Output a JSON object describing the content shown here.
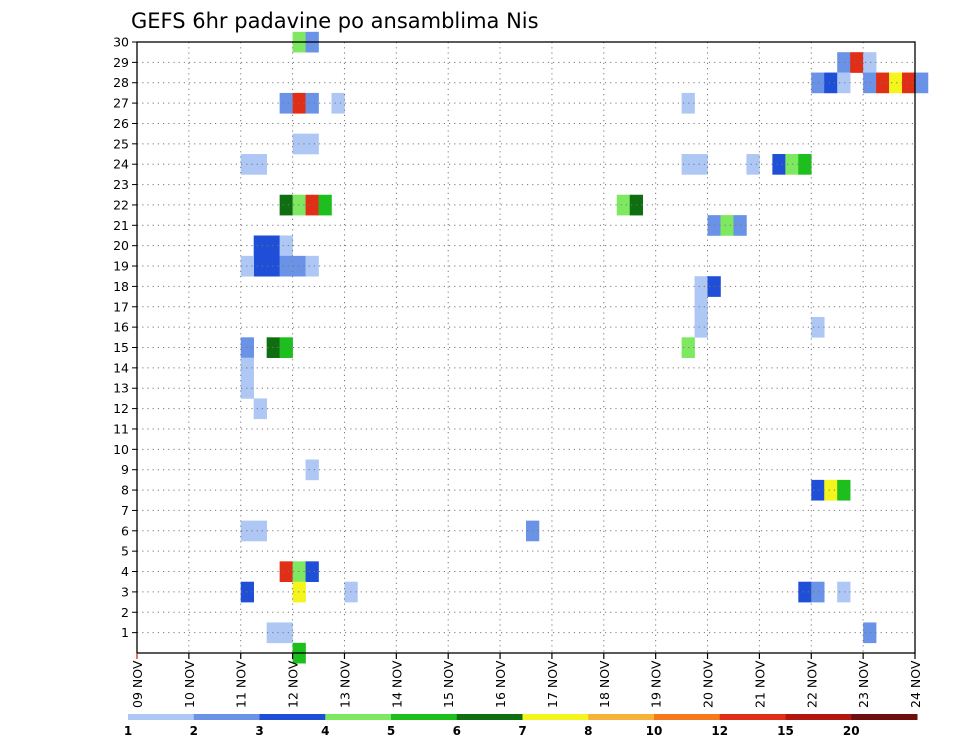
{
  "chart_data": {
    "type": "heatmap",
    "title": "GEFS 6hr padavine po ansamblima Nis",
    "xlabel": "",
    "ylabel": "",
    "x_tick_labels": [
      "09 NOV",
      "10 NOV",
      "11 NOV",
      "12 NOV",
      "13 NOV",
      "14 NOV",
      "15 NOV",
      "16 NOV",
      "17 NOV",
      "18 NOV",
      "19 NOV",
      "20 NOV",
      "21 NOV",
      "22 NOV",
      "23 NOV",
      "24 NOV"
    ],
    "x_range_days": [
      0,
      15
    ],
    "y_tick_labels": [
      "1",
      "2",
      "3",
      "4",
      "5",
      "6",
      "7",
      "8",
      "9",
      "10",
      "11",
      "12",
      "13",
      "14",
      "15",
      "16",
      "17",
      "18",
      "19",
      "20",
      "21",
      "22",
      "23",
      "24",
      "25",
      "26",
      "27",
      "28",
      "29",
      "30"
    ],
    "ylim": [
      0,
      30
    ],
    "grid": "dotted",
    "colorbar": {
      "labels": [
        "1",
        "2",
        "3",
        "4",
        "5",
        "6",
        "7",
        "8",
        "10",
        "12",
        "15",
        "20"
      ],
      "colors": [
        "#aec7f4",
        "#6a93e8",
        "#1f4fd6",
        "#7de860",
        "#1dbf1d",
        "#0f6e10",
        "#f5f51e",
        "#f7b23a",
        "#f47a1d",
        "#e02e17",
        "#b3150f",
        "#6e0f0e"
      ]
    },
    "cells_note_units": "x = day offset from 09 NOV (0.25 = 6 h step), y = ensemble member, level = colorbar bin index",
    "cells": [
      {
        "x": 3.0,
        "y": 30,
        "level": 3
      },
      {
        "x": 3.25,
        "y": 30,
        "level": 1
      },
      {
        "x": 13.5,
        "y": 29,
        "level": 1
      },
      {
        "x": 13.75,
        "y": 29,
        "level": 9
      },
      {
        "x": 14.0,
        "y": 29,
        "level": 0
      },
      {
        "x": 13.0,
        "y": 28,
        "level": 1
      },
      {
        "x": 13.25,
        "y": 28,
        "level": 2
      },
      {
        "x": 13.5,
        "y": 28,
        "level": 0
      },
      {
        "x": 14.0,
        "y": 28,
        "level": 1
      },
      {
        "x": 14.25,
        "y": 28,
        "level": 9
      },
      {
        "x": 14.5,
        "y": 28,
        "level": 6
      },
      {
        "x": 14.75,
        "y": 28,
        "level": 9
      },
      {
        "x": 15.0,
        "y": 28,
        "level": 1
      },
      {
        "x": 2.75,
        "y": 27,
        "level": 1
      },
      {
        "x": 3.0,
        "y": 27,
        "level": 9
      },
      {
        "x": 3.25,
        "y": 27,
        "level": 1
      },
      {
        "x": 3.75,
        "y": 27,
        "level": 0
      },
      {
        "x": 10.5,
        "y": 27,
        "level": 0
      },
      {
        "x": 3.0,
        "y": 25,
        "level": 0
      },
      {
        "x": 3.25,
        "y": 25,
        "level": 0
      },
      {
        "x": 2.0,
        "y": 24,
        "level": 0
      },
      {
        "x": 2.25,
        "y": 24,
        "level": 0
      },
      {
        "x": 10.5,
        "y": 24,
        "level": 0
      },
      {
        "x": 10.75,
        "y": 24,
        "level": 0
      },
      {
        "x": 11.75,
        "y": 24,
        "level": 0
      },
      {
        "x": 12.25,
        "y": 24,
        "level": 2
      },
      {
        "x": 12.5,
        "y": 24,
        "level": 3
      },
      {
        "x": 12.75,
        "y": 24,
        "level": 4
      },
      {
        "x": 2.75,
        "y": 22,
        "level": 5
      },
      {
        "x": 3.0,
        "y": 22,
        "level": 3
      },
      {
        "x": 3.25,
        "y": 22,
        "level": 9
      },
      {
        "x": 3.5,
        "y": 22,
        "level": 4
      },
      {
        "x": 9.25,
        "y": 22,
        "level": 3
      },
      {
        "x": 9.5,
        "y": 22,
        "level": 5
      },
      {
        "x": 11.0,
        "y": 21,
        "level": 1
      },
      {
        "x": 11.25,
        "y": 21,
        "level": 3
      },
      {
        "x": 11.5,
        "y": 21,
        "level": 1
      },
      {
        "x": 2.25,
        "y": 20,
        "level": 2
      },
      {
        "x": 2.5,
        "y": 20,
        "level": 2
      },
      {
        "x": 2.75,
        "y": 20,
        "level": 0
      },
      {
        "x": 2.25,
        "y": 19,
        "level": 2
      },
      {
        "x": 2.5,
        "y": 19,
        "level": 2
      },
      {
        "x": 2.0,
        "y": 19,
        "level": 0
      },
      {
        "x": 2.75,
        "y": 19,
        "level": 1
      },
      {
        "x": 3.0,
        "y": 19,
        "level": 1
      },
      {
        "x": 3.25,
        "y": 19,
        "level": 0
      },
      {
        "x": 10.75,
        "y": 18,
        "level": 0
      },
      {
        "x": 11.0,
        "y": 18,
        "level": 2
      },
      {
        "x": 10.75,
        "y": 17,
        "level": 0
      },
      {
        "x": 13.0,
        "y": 16,
        "level": 0
      },
      {
        "x": 10.75,
        "y": 16,
        "level": 0
      },
      {
        "x": 2.5,
        "y": 15,
        "level": 5
      },
      {
        "x": 2.75,
        "y": 15,
        "level": 4
      },
      {
        "x": 2.0,
        "y": 15,
        "level": 1
      },
      {
        "x": 10.5,
        "y": 15,
        "level": 3
      },
      {
        "x": 2.0,
        "y": 14,
        "level": 0
      },
      {
        "x": 2.0,
        "y": 13,
        "level": 0
      },
      {
        "x": 2.25,
        "y": 12,
        "level": 0
      },
      {
        "x": 3.25,
        "y": 9,
        "level": 0
      },
      {
        "x": 13.0,
        "y": 8,
        "level": 2
      },
      {
        "x": 13.25,
        "y": 8,
        "level": 6
      },
      {
        "x": 13.5,
        "y": 8,
        "level": 4
      },
      {
        "x": 2.0,
        "y": 6,
        "level": 0
      },
      {
        "x": 2.25,
        "y": 6,
        "level": 0
      },
      {
        "x": 7.5,
        "y": 6,
        "level": 1
      },
      {
        "x": 2.75,
        "y": 4,
        "level": 9
      },
      {
        "x": 3.0,
        "y": 4,
        "level": 3
      },
      {
        "x": 3.25,
        "y": 4,
        "level": 2
      },
      {
        "x": 2.0,
        "y": 3,
        "level": 2
      },
      {
        "x": 3.0,
        "y": 3,
        "level": 6
      },
      {
        "x": 4.0,
        "y": 3,
        "level": 0
      },
      {
        "x": 12.75,
        "y": 3,
        "level": 2
      },
      {
        "x": 13.0,
        "y": 3,
        "level": 1
      },
      {
        "x": 13.5,
        "y": 3,
        "level": 0
      },
      {
        "x": 2.5,
        "y": 1,
        "level": 0
      },
      {
        "x": 2.75,
        "y": 1,
        "level": 0
      },
      {
        "x": 14.0,
        "y": 1,
        "level": 1
      },
      {
        "x": 3.0,
        "y": 0,
        "level": 4
      }
    ]
  }
}
